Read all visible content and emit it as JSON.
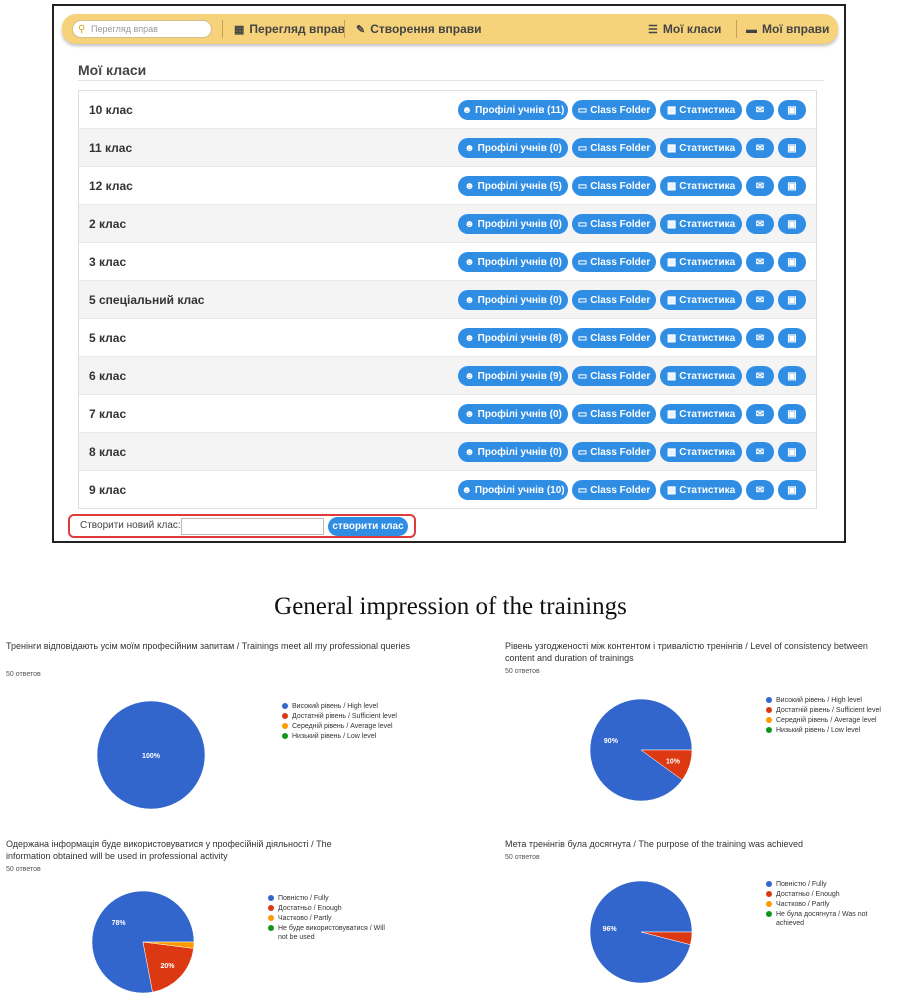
{
  "navbar": {
    "search_placeholder": "Перегляд вправ",
    "items": [
      "Перегляд вправ",
      "Створення вправи",
      "Мої класи",
      "Мої вправи"
    ]
  },
  "page_title": "Мої класи",
  "buttons": {
    "class_folder": "Class Folder",
    "stats": "Статистика"
  },
  "classes": [
    {
      "name": "10 клас",
      "profiles": "Профілі учнів (11)"
    },
    {
      "name": "11 клас",
      "profiles": "Профілі учнів (0)"
    },
    {
      "name": "12 клас",
      "profiles": "Профілі учнів (5)"
    },
    {
      "name": "2 клас",
      "profiles": "Профілі учнів (0)"
    },
    {
      "name": "3 клас",
      "profiles": "Профілі учнів (0)"
    },
    {
      "name": "5 спеціальний клас",
      "profiles": "Профілі учнів (0)"
    },
    {
      "name": "5 клас",
      "profiles": "Профілі учнів (8)"
    },
    {
      "name": "6 клас",
      "profiles": "Профілі учнів (9)"
    },
    {
      "name": "7 клас",
      "profiles": "Профілі учнів (0)"
    },
    {
      "name": "8 клас",
      "profiles": "Профілі учнів (0)"
    },
    {
      "name": "9 клас",
      "profiles": "Профілі учнів (10)"
    }
  ],
  "create": {
    "label": "Створити новий клас:",
    "button": "створити клас"
  },
  "caption": "General impression of the trainings",
  "colors": {
    "blue": "#3366cc",
    "red": "#dc3912",
    "orange": "#ff9900",
    "green": "#109618",
    "button": "#2f8de4",
    "navbar": "#f6d37a"
  },
  "chart_data": [
    {
      "type": "pie",
      "title": "Тренінги відповідають усім моїм професійним запитам / Trainings meet all my professional queries",
      "subtitle": "50 ответов",
      "categories": [
        "Високий рівень / High level",
        "Достатній рівень / Sufficient level",
        "Середній рівень / Average level",
        "Низький рівень / Low level"
      ],
      "values": [
        100,
        0,
        0,
        0
      ],
      "labels": [
        "100%",
        "",
        "",
        ""
      ]
    },
    {
      "type": "pie",
      "title": "Рівень узгодженості між контентом і тривалістю тренінгів / Level of consistency between content and duration of trainings",
      "subtitle": "50 ответов",
      "categories": [
        "Високий рівень / High level",
        "Достатній рівень / Sufficient level",
        "Середній рівень / Average level",
        "Низький рівень / Low level"
      ],
      "values": [
        90,
        10,
        0,
        0
      ],
      "labels": [
        "90%",
        "10%",
        "",
        ""
      ]
    },
    {
      "type": "pie",
      "title": "Одержана інформація буде використовуватися у професійній діяльності / The information obtained will be used in professional activity",
      "subtitle": "50 ответов",
      "categories": [
        "Повністю / Fully",
        "Достатньо / Enough",
        "Частково / Partly",
        "Не буде використовуватися / Will not be used"
      ],
      "values": [
        78,
        20,
        2,
        0
      ],
      "labels": [
        "78%",
        "20%",
        "",
        ""
      ]
    },
    {
      "type": "pie",
      "title": "Мета тренінгів була досягнута / The purpose of the training was achieved",
      "subtitle": "50 ответов",
      "categories": [
        "Повністю / Fully",
        "Достатньо / Enough",
        "Частково / Partly",
        "Не була досягнута / Was not achieved"
      ],
      "values": [
        96,
        4,
        0,
        0
      ],
      "labels": [
        "96%",
        "",
        "",
        ""
      ]
    }
  ]
}
